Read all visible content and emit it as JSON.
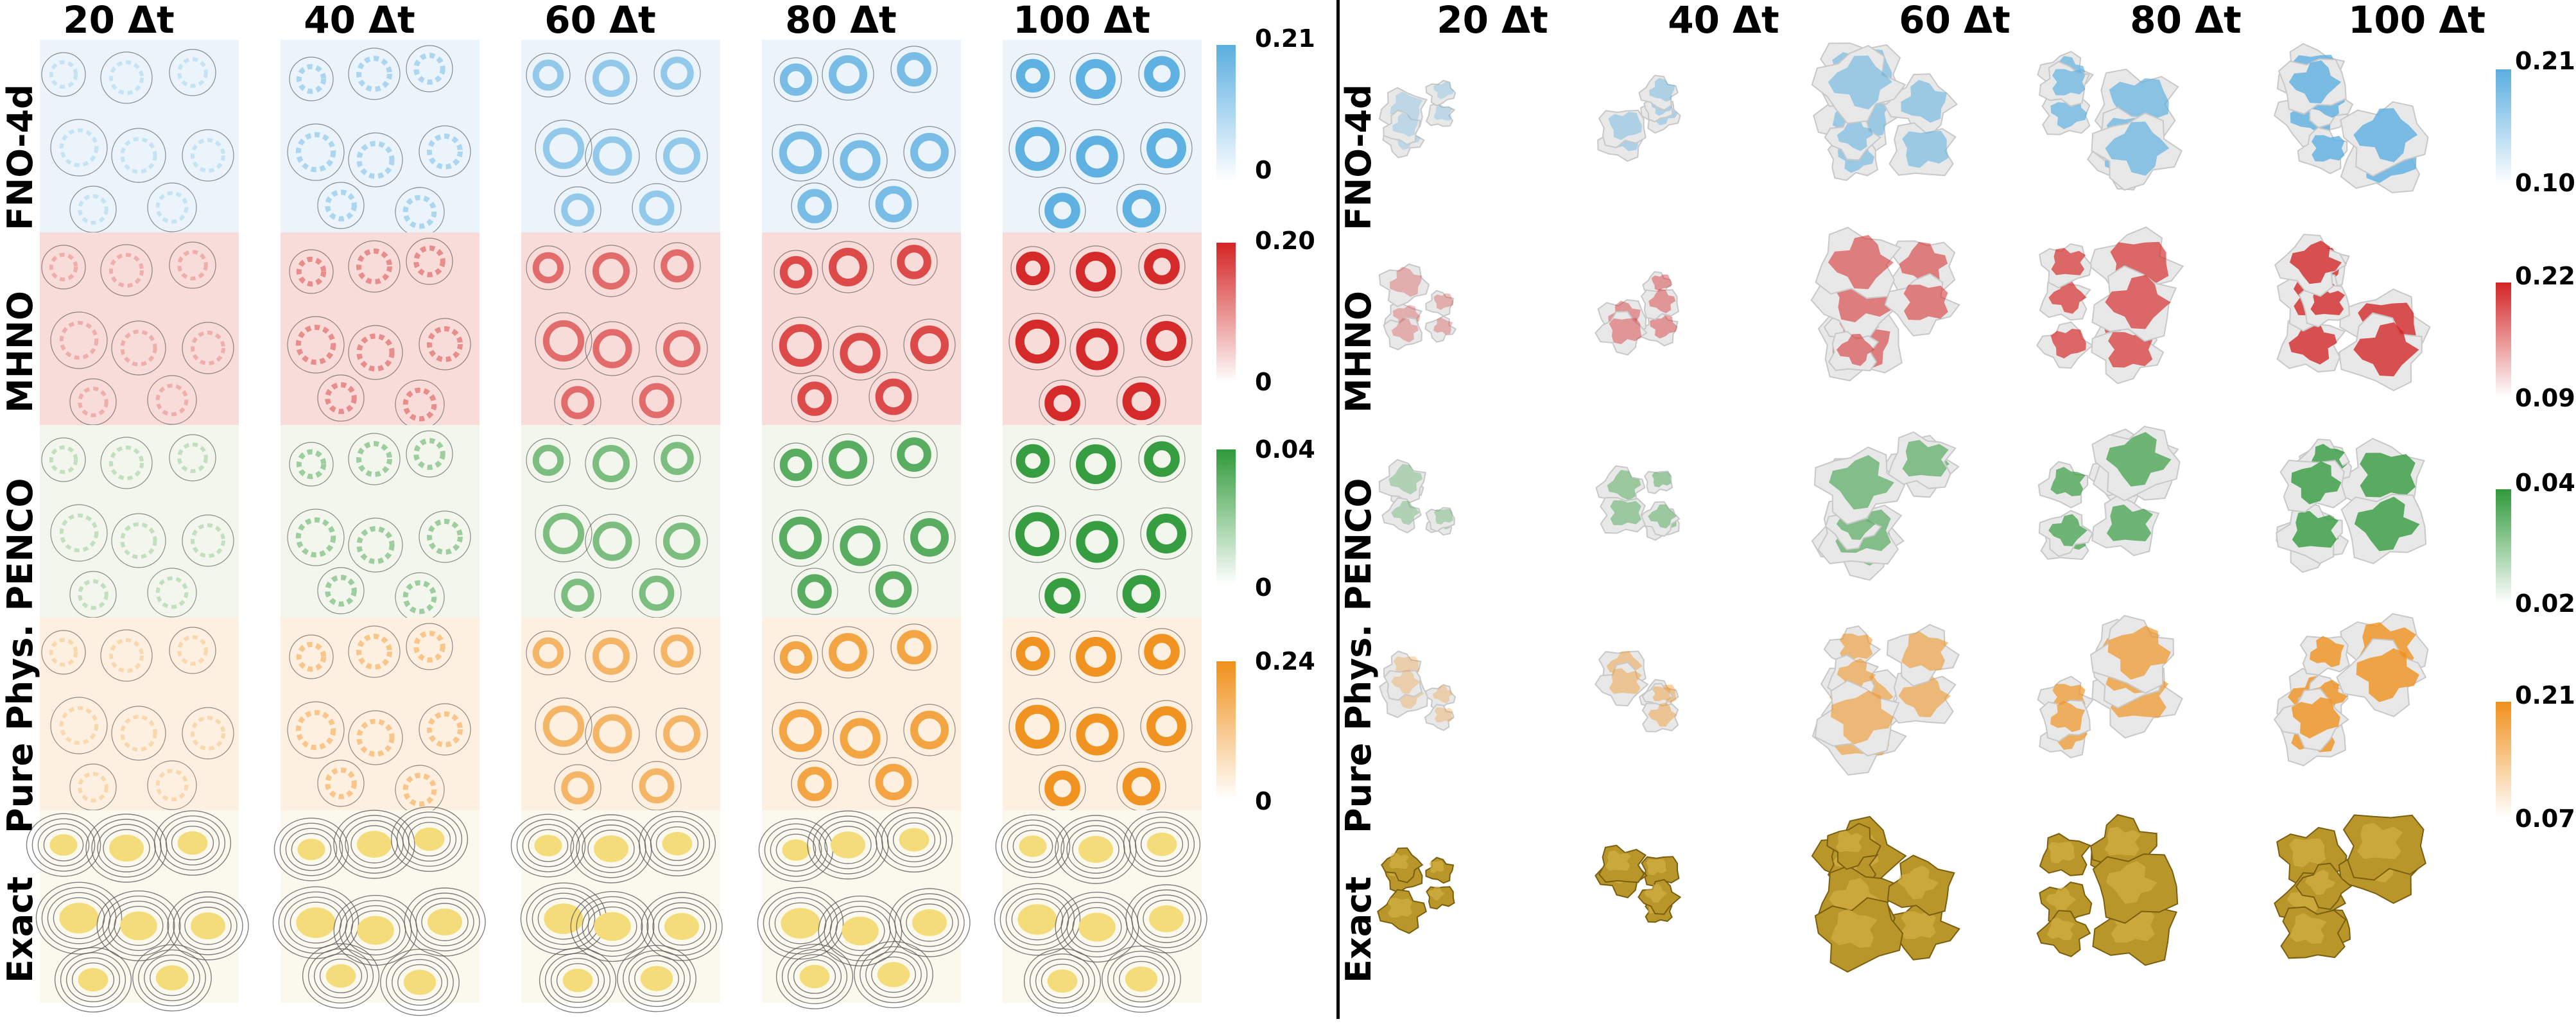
{
  "columns": [
    "20 Δt",
    "40 Δt",
    "60 Δt",
    "80 Δt",
    "100 Δt"
  ],
  "rows": [
    {
      "label": "FNO-4d",
      "color": "#5aaee0",
      "light": "#eaf4fa",
      "cb2d": {
        "max": "0.21",
        "min": "0"
      },
      "cb3d": {
        "max": "0.21",
        "min": "0.10"
      }
    },
    {
      "label": "MHNO",
      "color": "#d42424",
      "light": "#f7dcda",
      "cb2d": {
        "max": "0.20",
        "min": "0"
      },
      "cb3d": {
        "max": "0.22",
        "min": "0.09"
      }
    },
    {
      "label": "PENCO",
      "color": "#2f9a3a",
      "light": "#f3f6ec",
      "cb2d": {
        "max": "0.04",
        "min": "0"
      },
      "cb3d": {
        "max": "0.04",
        "min": "0.02"
      }
    },
    {
      "label": "Pure Phys.",
      "color": "#f0901a",
      "light": "#fdf0e0",
      "cb2d": {
        "max": "0.24",
        "min": "0"
      },
      "cb3d": {
        "max": "0.21",
        "min": "0.07"
      }
    },
    {
      "label": "Exact",
      "color": "#f4dc7a",
      "light": "#fbf8ee",
      "cb2d": null,
      "cb3d": null
    }
  ],
  "surface_colors": {
    "error_base": "#e8e8e8",
    "exact": "#b8962a"
  }
}
